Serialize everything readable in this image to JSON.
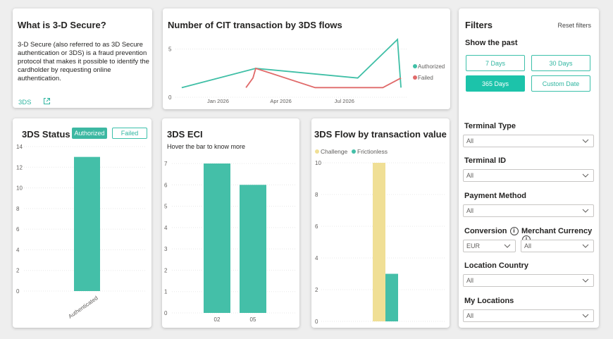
{
  "info": {
    "title": "What is 3-D Secure?",
    "body": "3-D Secure (also referred to as 3D Secure authentication or 3DS) is a fraud prevention protocol that makes it possible to identify the cardholder by requesting online authentication.",
    "link_label": "3DS",
    "link_icon": "external-link-icon"
  },
  "line_chart": {
    "title": "Number of CIT transaction by 3DS flows",
    "chart_data": {
      "type": "line",
      "x_ticks": [
        "Jan 2026",
        "Apr 2026",
        "Jul 2026"
      ],
      "y_ticks": [
        0,
        5
      ],
      "ylim": [
        0,
        6
      ],
      "legend_position": "right",
      "series": [
        {
          "name": "Authorized",
          "color": "#3fbfa6",
          "points": [
            [
              "2025-11-10",
              1
            ],
            [
              "2026-02-24",
              3
            ],
            [
              "2026-07-20",
              2
            ],
            [
              "2026-09-15",
              6
            ],
            [
              "2026-09-20",
              1
            ]
          ]
        },
        {
          "name": "Failed",
          "color": "#e06a6a",
          "points": [
            [
              "2026-02-10",
              1
            ],
            [
              "2026-02-20",
              2
            ],
            [
              "2026-02-24",
              3
            ],
            [
              "2026-05-20",
              1
            ],
            [
              "2026-08-25",
              1
            ],
            [
              "2026-09-20",
              2
            ]
          ]
        }
      ]
    }
  },
  "status_chart": {
    "title": "3DS Status",
    "toggle_authorized": "Authorized",
    "toggle_failed": "Failed",
    "chart_data": {
      "type": "bar",
      "categories": [
        "Authenticated"
      ],
      "values": [
        13
      ],
      "y_ticks": [
        0,
        2,
        4,
        6,
        8,
        10,
        12,
        14
      ],
      "ylim": [
        0,
        14
      ],
      "color": "#44bfa8"
    }
  },
  "eci_chart": {
    "title": "3DS ECI",
    "subtitle": "Hover the bar to know more",
    "chart_data": {
      "type": "bar",
      "categories": [
        "02",
        "05"
      ],
      "values": [
        7,
        6
      ],
      "y_ticks": [
        0,
        1,
        2,
        3,
        4,
        5,
        6,
        7
      ],
      "ylim": [
        0,
        7
      ],
      "color": "#44bfa8"
    }
  },
  "flow_chart": {
    "title": "3DS Flow by transaction value",
    "chart_data": {
      "type": "bar",
      "legend_position": "top-left",
      "y_ticks": [
        0,
        2,
        4,
        6,
        8,
        10
      ],
      "ylim": [
        0,
        10
      ],
      "series": [
        {
          "name": "Challenge",
          "color": "#f0df95",
          "values": [
            10
          ]
        },
        {
          "name": "Frictionless",
          "color": "#44bfa8",
          "values": [
            3
          ]
        }
      ]
    }
  },
  "filters": {
    "title": "Filters",
    "reset": "Reset filters",
    "show_past": "Show the past",
    "btn_7": "7 Days",
    "btn_30": "30 Days",
    "btn_365": "365 Days",
    "btn_custom": "Custom Date",
    "terminal_type": "Terminal Type",
    "terminal_type_value": "All",
    "terminal_id": "Terminal ID",
    "terminal_id_value": "All",
    "payment_method": "Payment Method",
    "payment_method_value": "All",
    "conversion": "Conversion",
    "conversion_value": "EUR",
    "merchant_currency": "Merchant Currency",
    "merchant_currency_value": "All",
    "location_country": "Location Country",
    "location_country_value": "All",
    "my_locations": "My Locations",
    "my_locations_value": "All"
  }
}
